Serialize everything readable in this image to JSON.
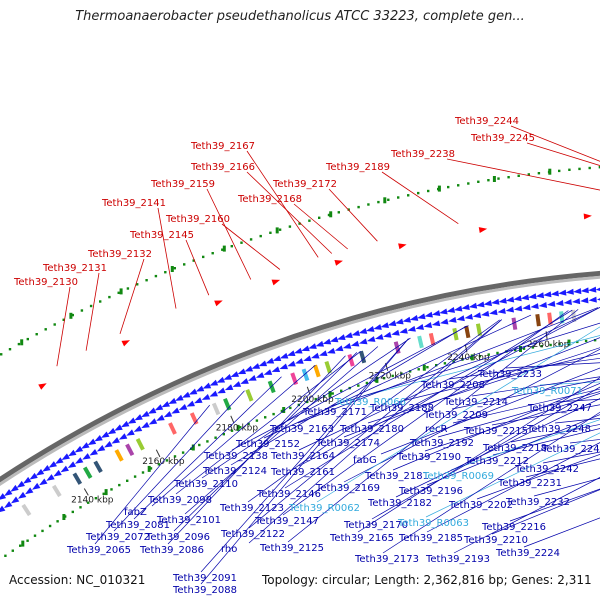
{
  "title": "Thermoanaerobacter pseudethanolicus ATCC 33223, complete gen...",
  "footer": {
    "accession": "Accession: NC_010321",
    "topology": "Topology: circular; Length: 2,362,816 bp; Genes: 2,311"
  },
  "colors": {
    "upper_gene": "#cc0000",
    "lower_gene": "#0000aa",
    "rna_gene": "#33aadd",
    "backbone": "#888888",
    "forward_arrow": "#1a1aff",
    "reverse_arrow": "#ff0000",
    "gc_ticks": "#118811"
  },
  "ticks": [
    {
      "label": "2140 kbp"
    },
    {
      "label": "2160 kbp"
    },
    {
      "label": "2180 kbp"
    },
    {
      "label": "2200 kbp"
    },
    {
      "label": "2220 kbp"
    },
    {
      "label": "2240 kbp"
    },
    {
      "label": "2260 kbp"
    },
    {
      "label": "2280 kbp"
    },
    {
      "label": "2300 kbp"
    },
    {
      "label": "2320 kbp"
    }
  ],
  "upper_labels": [
    {
      "name": "Teth39_2130"
    },
    {
      "name": "Teth39_2131"
    },
    {
      "name": "Teth39_2132"
    },
    {
      "name": "Teth39_2141"
    },
    {
      "name": "Teth39_2145"
    },
    {
      "name": "Teth39_2159"
    },
    {
      "name": "Teth39_2160"
    },
    {
      "name": "Teth39_2167"
    },
    {
      "name": "Teth39_2166"
    },
    {
      "name": "Teth39_2168"
    },
    {
      "name": "Teth39_2172"
    },
    {
      "name": "Teth39_2189"
    },
    {
      "name": "Teth39_2238"
    },
    {
      "name": "Teth39_2244"
    },
    {
      "name": "Teth39_2245"
    }
  ],
  "lower_labels": [
    {
      "name": "Teth39_2233"
    },
    {
      "name": "Teth39_R0071"
    },
    {
      "name": "Teth39_2208"
    },
    {
      "name": "Teth39_2214"
    },
    {
      "name": "Teth39_2247"
    },
    {
      "name": "Teth39_R0066"
    },
    {
      "name": "Teth39_2171"
    },
    {
      "name": "Teth39_2188"
    },
    {
      "name": "Teth39_2209"
    },
    {
      "name": "Teth39_2163"
    },
    {
      "name": "Teth39_2180"
    },
    {
      "name": "recR"
    },
    {
      "name": "Teth39_2215"
    },
    {
      "name": "Teth39_2248"
    },
    {
      "name": "Teth39_2152"
    },
    {
      "name": "Teth39_2174"
    },
    {
      "name": "Teth39_2192"
    },
    {
      "name": "Teth39_2218"
    },
    {
      "name": "Teth39_2249"
    },
    {
      "name": "Teth39_2138"
    },
    {
      "name": "Teth39_2164"
    },
    {
      "name": "fabG"
    },
    {
      "name": "Teth39_2190"
    },
    {
      "name": "Teth39_2212"
    },
    {
      "name": "Teth39_2124"
    },
    {
      "name": "Teth39_2161"
    },
    {
      "name": "Teth39_2181"
    },
    {
      "name": "Teth39_R0069"
    },
    {
      "name": "Teth39_2242"
    },
    {
      "name": "Teth39_2110"
    },
    {
      "name": "Teth39_2169"
    },
    {
      "name": "Teth39_2196"
    },
    {
      "name": "Teth39_2231"
    },
    {
      "name": "Teth39_2098"
    },
    {
      "name": "Teth39_2146"
    },
    {
      "name": "Teth39_2182"
    },
    {
      "name": "Teth39_2202"
    },
    {
      "name": "Teth39_2232"
    },
    {
      "name": "Teth39_2123"
    },
    {
      "name": "Teth39_R0062"
    },
    {
      "name": "fabZ"
    },
    {
      "name": "Teth39_2101"
    },
    {
      "name": "Teth39_2147"
    },
    {
      "name": "Teth39_2170"
    },
    {
      "name": "Teth39_R0063"
    },
    {
      "name": "Teth39_2216"
    },
    {
      "name": "Teth39_2081"
    },
    {
      "name": "Teth39_2122"
    },
    {
      "name": "Teth39_2072"
    },
    {
      "name": "Teth39_2096"
    },
    {
      "name": "Teth39_2165"
    },
    {
      "name": "Teth39_2185"
    },
    {
      "name": "Teth39_2210"
    },
    {
      "name": "rho"
    },
    {
      "name": "Teth39_2065"
    },
    {
      "name": "Teth39_2086"
    },
    {
      "name": "Teth39_2125"
    },
    {
      "name": "Teth39_2173"
    },
    {
      "name": "Teth39_2193"
    },
    {
      "name": "Teth39_2224"
    },
    {
      "name": "Teth39_2091"
    },
    {
      "name": "Teth39_2088"
    }
  ]
}
